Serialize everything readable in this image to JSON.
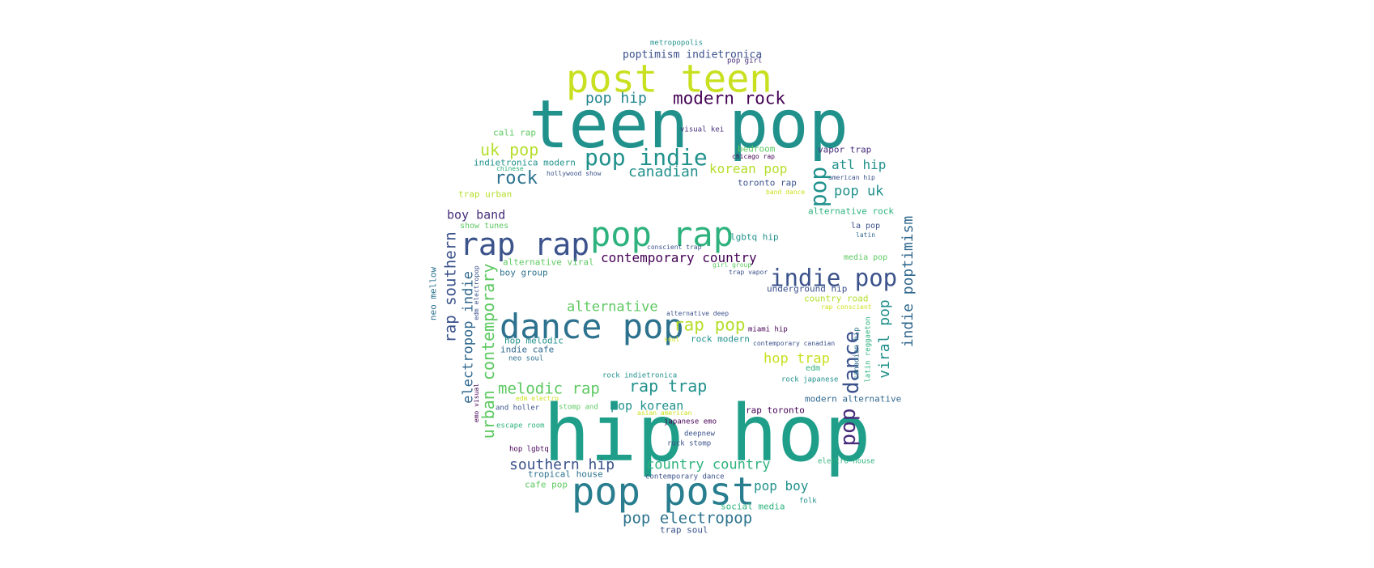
{
  "palette": {
    "teal": "#21918c",
    "green": "#2db27d",
    "light_green": "#5ec962",
    "yellow_green": "#b5de2b",
    "yellow": "#cde11d",
    "blue": "#31688e",
    "indigo": "#3b528b",
    "purple": "#472d7b",
    "dark_purple": "#440154",
    "blue_teal": "#2c728e"
  },
  "words": [
    {
      "id": "w1",
      "text": "teen pop",
      "color": "#21918c"
    },
    {
      "id": "w2",
      "text": "hip hop",
      "color": "#1f9e89"
    },
    {
      "id": "w3",
      "text": "post teen",
      "color": "#c8e020"
    },
    {
      "id": "w4",
      "text": "pop rap",
      "color": "#2db27d"
    },
    {
      "id": "w5",
      "text": "rap rap",
      "color": "#3b528b"
    },
    {
      "id": "w6",
      "text": "dance pop",
      "color": "#2c728e"
    },
    {
      "id": "w7",
      "text": "pop post",
      "color": "#287d8e"
    },
    {
      "id": "w8",
      "text": "indie pop",
      "color": "#3b528b"
    },
    {
      "id": "w9",
      "text": "pop indie",
      "color": "#21918c"
    },
    {
      "id": "w10",
      "text": "modern rock",
      "color": "#440154"
    },
    {
      "id": "w11",
      "text": "pop hip",
      "color": "#25858e"
    },
    {
      "id": "w12",
      "text": "poptimism indietronica",
      "color": "#3b528b"
    },
    {
      "id": "w13",
      "text": "metropopolis",
      "color": "#21918c"
    },
    {
      "id": "w14",
      "text": "pop girl",
      "color": "#472d7b"
    },
    {
      "id": "w15",
      "text": "uk pop",
      "color": "#b5de2b"
    },
    {
      "id": "w16",
      "text": "rock",
      "color": "#2c728e"
    },
    {
      "id": "w17",
      "text": "canadian",
      "color": "#21918c"
    },
    {
      "id": "w18",
      "text": "korean pop",
      "color": "#b5de2b"
    },
    {
      "id": "w19",
      "text": "atl hip",
      "color": "#21918c"
    },
    {
      "id": "w20",
      "text": "pop uk",
      "color": "#21918c"
    },
    {
      "id": "w21",
      "text": "cali rap",
      "color": "#5ec962"
    },
    {
      "id": "w22",
      "text": "visual kei",
      "color": "#472d7b"
    },
    {
      "id": "w23",
      "text": "bedroom",
      "color": "#5ec962"
    },
    {
      "id": "w24",
      "text": "chicago rap",
      "color": "#440154"
    },
    {
      "id": "w25",
      "text": "vapor trap",
      "color": "#472d7b"
    },
    {
      "id": "w26",
      "text": "indietronica modern",
      "color": "#21918c"
    },
    {
      "id": "w27",
      "text": "chinese",
      "color": "#2db27d"
    },
    {
      "id": "w28",
      "text": "hollywood show",
      "color": "#3b528b"
    },
    {
      "id": "w29",
      "text": "toronto rap",
      "color": "#3b528b"
    },
    {
      "id": "w30",
      "text": "american hip",
      "color": "#3b528b"
    },
    {
      "id": "w31",
      "text": "band dance",
      "color": "#cde11d"
    },
    {
      "id": "w32",
      "text": "trap urban",
      "color": "#b5de2b"
    },
    {
      "id": "w33",
      "text": "alternative rock",
      "color": "#2db27d"
    },
    {
      "id": "w34",
      "text": "boy band",
      "color": "#472d7b"
    },
    {
      "id": "w35",
      "text": "show tunes",
      "color": "#5ec962"
    },
    {
      "id": "w36",
      "text": "lgbtq hip",
      "color": "#21918c"
    },
    {
      "id": "w37",
      "text": "la pop",
      "color": "#3b528b"
    },
    {
      "id": "w38",
      "text": "latin",
      "color": "#31688e"
    },
    {
      "id": "w39",
      "text": "conscient trap",
      "color": "#3b528b"
    },
    {
      "id": "w40",
      "text": "contemporary country",
      "color": "#440154"
    },
    {
      "id": "w41",
      "text": "media pop",
      "color": "#5ec962"
    },
    {
      "id": "w42",
      "text": "alternative viral",
      "color": "#5ec962"
    },
    {
      "id": "w43",
      "text": "girl group",
      "color": "#5ec962"
    },
    {
      "id": "w44",
      "text": "trap vapor",
      "color": "#3b528b"
    },
    {
      "id": "w45",
      "text": "boy group",
      "color": "#2c728e"
    },
    {
      "id": "w46",
      "text": "underground hip",
      "color": "#3b528b"
    },
    {
      "id": "w47",
      "text": "country road",
      "color": "#b5de2b"
    },
    {
      "id": "w48",
      "text": "rap conscient",
      "color": "#cde11d"
    },
    {
      "id": "w49",
      "text": "alternative",
      "color": "#5ec962"
    },
    {
      "id": "w50",
      "text": "alternative deep",
      "color": "#3b528b"
    },
    {
      "id": "w51",
      "text": "rap pop",
      "color": "#b5de2b"
    },
    {
      "id": "w52",
      "text": "miami hip",
      "color": "#440154"
    },
    {
      "id": "w53",
      "text": "soul",
      "color": "#cde11d"
    },
    {
      "id": "w54",
      "text": "rock modern",
      "color": "#21918c"
    },
    {
      "id": "w55",
      "text": "contemporary canadian",
      "color": "#3b528b"
    },
    {
      "id": "w56",
      "text": "hop melodic",
      "color": "#21918c"
    },
    {
      "id": "w57",
      "text": "indie cafe",
      "color": "#31688e"
    },
    {
      "id": "w58",
      "text": "neo soul",
      "color": "#2c728e"
    },
    {
      "id": "w59",
      "text": "hop trap",
      "color": "#c8e020"
    },
    {
      "id": "w60",
      "text": "edm",
      "color": "#2db27d"
    },
    {
      "id": "w61",
      "text": "rock indietronica",
      "color": "#21918c"
    },
    {
      "id": "w62",
      "text": "rock japanese",
      "color": "#21918c"
    },
    {
      "id": "w63",
      "text": "melodic rap",
      "color": "#5ec962"
    },
    {
      "id": "w64",
      "text": "rap trap",
      "color": "#21918c"
    },
    {
      "id": "w65",
      "text": "modern alternative",
      "color": "#31688e"
    },
    {
      "id": "w66",
      "text": "edm electro",
      "color": "#cde11d"
    },
    {
      "id": "w67",
      "text": "stomp and",
      "color": "#5ec962"
    },
    {
      "id": "w68",
      "text": "pop korean",
      "color": "#21918c"
    },
    {
      "id": "w69",
      "text": "and holler",
      "color": "#3b528b"
    },
    {
      "id": "w70",
      "text": "asian american",
      "color": "#cde11d"
    },
    {
      "id": "w71",
      "text": "japanese emo",
      "color": "#440154"
    },
    {
      "id": "w72",
      "text": "rap toronto",
      "color": "#440154"
    },
    {
      "id": "w73",
      "text": "escape room",
      "color": "#2db27d"
    },
    {
      "id": "w74",
      "text": "deepnew",
      "color": "#3b528b"
    },
    {
      "id": "w75",
      "text": "rock stomp",
      "color": "#3b528b"
    },
    {
      "id": "w76",
      "text": "hop lgbtq",
      "color": "#440154"
    },
    {
      "id": "w77",
      "text": "electro house",
      "color": "#2db27d"
    },
    {
      "id": "w78",
      "text": "southern hip",
      "color": "#3b528b"
    },
    {
      "id": "w79",
      "text": "country country",
      "color": "#2db27d"
    },
    {
      "id": "w80",
      "text": "tropical house",
      "color": "#2c728e"
    },
    {
      "id": "w81",
      "text": "contemporary dance",
      "color": "#3b528b"
    },
    {
      "id": "w82",
      "text": "cafe pop",
      "color": "#5ec962"
    },
    {
      "id": "w83",
      "text": "pop boy",
      "color": "#21918c"
    },
    {
      "id": "w84",
      "text": "social media",
      "color": "#2db27d"
    },
    {
      "id": "w85",
      "text": "folk",
      "color": "#21918c"
    },
    {
      "id": "w86",
      "text": "pop electropop",
      "color": "#2c728e"
    },
    {
      "id": "w87",
      "text": "trap soul",
      "color": "#3b528b"
    },
    {
      "id": "w88",
      "text": "pop",
      "color": "#21918c"
    },
    {
      "id": "w89",
      "text": "rap southern",
      "color": "#3b528b"
    },
    {
      "id": "w90",
      "text": "electropop indie",
      "color": "#31688e"
    },
    {
      "id": "w91",
      "text": "urban contemporary",
      "color": "#5ec962"
    },
    {
      "id": "w92",
      "text": "neo mellow",
      "color": "#2c728e"
    },
    {
      "id": "w93",
      "text": "edm electropop",
      "color": "#3b528b"
    },
    {
      "id": "w94",
      "text": "emo visual",
      "color": "#440154"
    },
    {
      "id": "w95",
      "text": "indie poptimism",
      "color": "#31688e"
    },
    {
      "id": "w96",
      "text": "viral pop",
      "color": "#21918c"
    },
    {
      "id": "w97",
      "text": "dance",
      "color": "#3b528b"
    },
    {
      "id": "w98",
      "text": "canadian hip",
      "color": "#2c728e"
    },
    {
      "id": "w99",
      "text": "latin reggaeton",
      "color": "#2db27d"
    },
    {
      "id": "w100",
      "text": "pop",
      "color": "#472d7b"
    }
  ]
}
